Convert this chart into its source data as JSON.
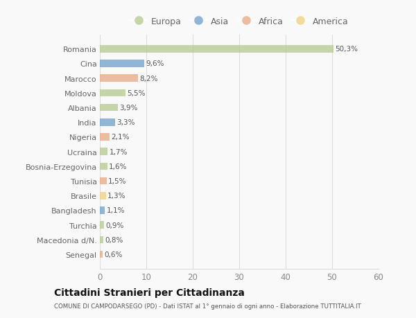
{
  "categories": [
    "Romania",
    "Cina",
    "Marocco",
    "Moldova",
    "Albania",
    "India",
    "Nigeria",
    "Ucraina",
    "Bosnia-Erzegovina",
    "Tunisia",
    "Brasile",
    "Bangladesh",
    "Turchia",
    "Macedonia d/N.",
    "Senegal"
  ],
  "values": [
    50.3,
    9.6,
    8.2,
    5.5,
    3.9,
    3.3,
    2.1,
    1.7,
    1.6,
    1.5,
    1.3,
    1.1,
    0.9,
    0.8,
    0.6
  ],
  "labels": [
    "50,3%",
    "9,6%",
    "8,2%",
    "5,5%",
    "3,9%",
    "3,3%",
    "2,1%",
    "1,7%",
    "1,6%",
    "1,5%",
    "1,3%",
    "1,1%",
    "0,9%",
    "0,8%",
    "0,6%"
  ],
  "colors": [
    "#b5c98e",
    "#6f9ec9",
    "#e8a882",
    "#b5c98e",
    "#b5c98e",
    "#6f9ec9",
    "#e8a882",
    "#b5c98e",
    "#b5c98e",
    "#e8a882",
    "#f0d080",
    "#6f9ec9",
    "#b5c98e",
    "#b5c98e",
    "#e8a882"
  ],
  "legend": {
    "Europa": "#b5c98e",
    "Asia": "#6f9ec9",
    "Africa": "#e8a882",
    "America": "#f0d080"
  },
  "title": "Cittadini Stranieri per Cittadinanza",
  "subtitle": "COMUNE DI CAMPODARSEGO (PD) - Dati ISTAT al 1° gennaio di ogni anno - Elaborazione TUTTITALIA.IT",
  "xlim": [
    0,
    60
  ],
  "xticks": [
    0,
    10,
    20,
    30,
    40,
    50,
    60
  ],
  "bg_color": "#f9f9f9",
  "grid_color": "#dddddd",
  "bar_alpha": 0.75,
  "bar_height": 0.5
}
